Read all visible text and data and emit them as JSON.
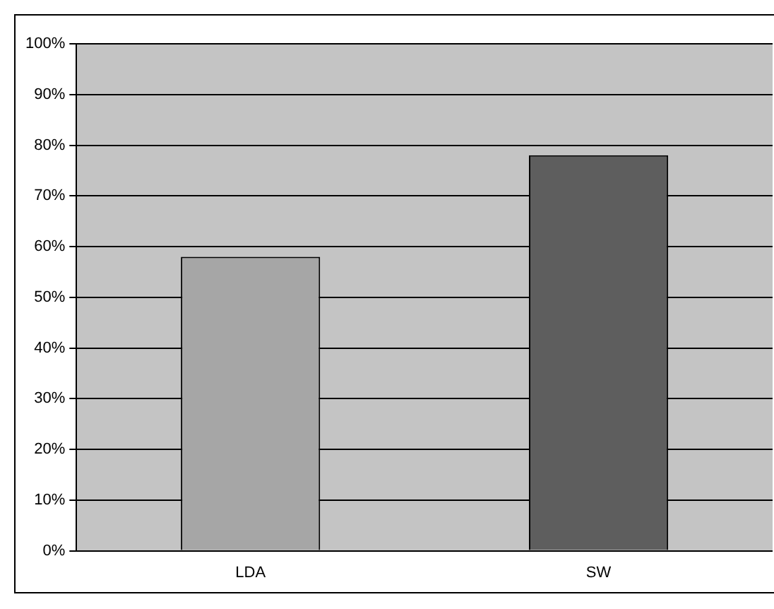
{
  "chart_data": {
    "type": "bar",
    "categories": [
      "LDA",
      "SW"
    ],
    "values": [
      58,
      78
    ],
    "colors": [
      "#a6a6a6",
      "#5e5e5e"
    ],
    "ylim": [
      0,
      100
    ],
    "yticks": [
      {
        "value": 0,
        "label": "0%"
      },
      {
        "value": 10,
        "label": "10%"
      },
      {
        "value": 20,
        "label": "20%"
      },
      {
        "value": 30,
        "label": "30%"
      },
      {
        "value": 40,
        "label": "40%"
      },
      {
        "value": 50,
        "label": "50%"
      },
      {
        "value": 60,
        "label": "60%"
      },
      {
        "value": 70,
        "label": "70%"
      },
      {
        "value": 80,
        "label": "80%"
      },
      {
        "value": 90,
        "label": "90%"
      },
      {
        "value": 100,
        "label": "100%"
      }
    ],
    "grid": "y"
  }
}
